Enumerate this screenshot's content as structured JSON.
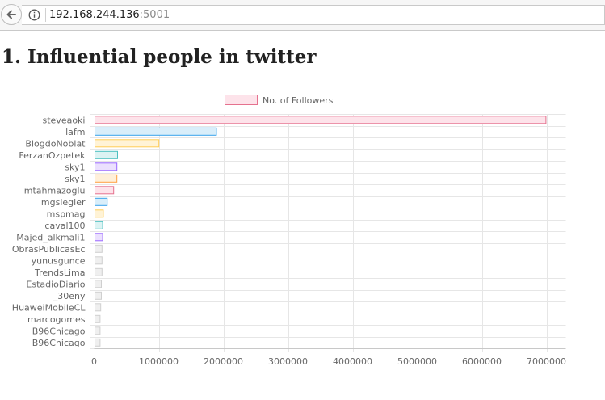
{
  "browser": {
    "url_host": "192.168.244.136",
    "url_port": ":5001"
  },
  "page": {
    "title": "1. Influential people in twitter"
  },
  "chart_data": {
    "type": "bar",
    "orientation": "horizontal",
    "categories": [
      "steveaoki",
      "lafm",
      "BlogdoNoblat",
      "FerzanOzpetek",
      "sky1",
      "sky1",
      "mtahmazoglu",
      "mgsiegler",
      "mspmag",
      "caval100",
      "Majed_alkmali1",
      "ObrasPublicasEc",
      "yunusgunce",
      "TrendsLima",
      "EstadioDiario",
      "_30eny",
      "HuaweiMobileCL",
      "marcogomes",
      "B96Chicago",
      "B96Chicago"
    ],
    "series": [
      {
        "name": "No. of Followers",
        "values": [
          6980000,
          1880000,
          990000,
          350000,
          340000,
          340000,
          290000,
          190000,
          130000,
          120000,
          120000,
          110000,
          110000,
          110000,
          100000,
          100000,
          90000,
          80000,
          80000,
          80000
        ]
      }
    ],
    "bar_fills": [
      "#fde3ea",
      "#d9eefa",
      "#fff3d6",
      "#dcf3f3",
      "#ebe0fe",
      "#fff0d9",
      "#fde3ea",
      "#d9eefa",
      "#fff3d6",
      "#dcf3f3",
      "#ebe0fe",
      "#efefef",
      "#efefef",
      "#efefef",
      "#efefef",
      "#efefef",
      "#efefef",
      "#efefef",
      "#efefef",
      "#efefef"
    ],
    "bar_strokes": [
      "#e5718e",
      "#36a2eb",
      "#ffcd56",
      "#4bc0c0",
      "#9966ff",
      "#ff9f40",
      "#e5718e",
      "#36a2eb",
      "#ffcd56",
      "#4bc0c0",
      "#9966ff",
      "#cfcfcf",
      "#cfcfcf",
      "#cfcfcf",
      "#cfcfcf",
      "#cfcfcf",
      "#cfcfcf",
      "#cfcfcf",
      "#cfcfcf",
      "#cfcfcf"
    ],
    "legend_fill": "#fde3ea",
    "legend_stroke": "#e5718e",
    "xticks": [
      0,
      1000000,
      2000000,
      3000000,
      4000000,
      5000000,
      6000000,
      7000000
    ],
    "xtick_labels": [
      "0",
      "1000000",
      "2000000",
      "3000000",
      "4000000",
      "5000000",
      "6000000",
      "7000000"
    ],
    "xlim": [
      0,
      7300000
    ],
    "grid": true,
    "legend_position": "top"
  }
}
